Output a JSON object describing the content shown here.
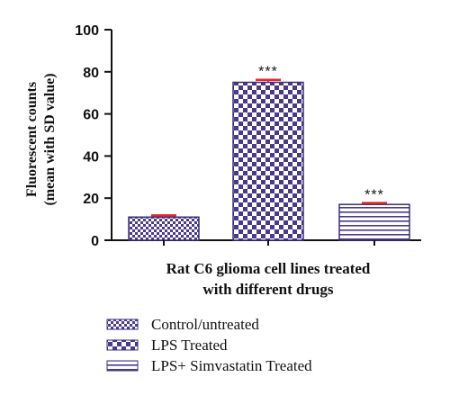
{
  "chart_data": {
    "type": "bar",
    "categories": [
      "Control/untreated",
      "LPS Treated",
      "LPS+ Simvastatin Treated"
    ],
    "values": [
      11,
      75,
      17
    ],
    "errors": [
      0.8,
      1.2,
      0.7
    ],
    "significance": [
      "",
      "***",
      "***"
    ],
    "xlabel_lines": [
      "Rat C6 glioma cell lines treated",
      "with different drugs"
    ],
    "ylabel_lines": [
      "Fluorescent counts",
      "(mean with SD value)"
    ],
    "ylim": [
      0,
      100
    ],
    "yticks": [
      "0",
      "20",
      "40",
      "60",
      "80",
      "100"
    ],
    "legend": {
      "placement": "bottom-left",
      "entries": [
        "Control/untreated",
        "LPS Treated",
        "LPS+ Simvastatin Treated"
      ]
    },
    "colors": {
      "bar_fill": "#4a3a8c",
      "bar_stroke": "#3a2f7a",
      "error_bar": "#e0262b",
      "axis": "#111111"
    },
    "patterns": [
      "fine-check",
      "coarse-check",
      "horizontal-lines"
    ]
  }
}
